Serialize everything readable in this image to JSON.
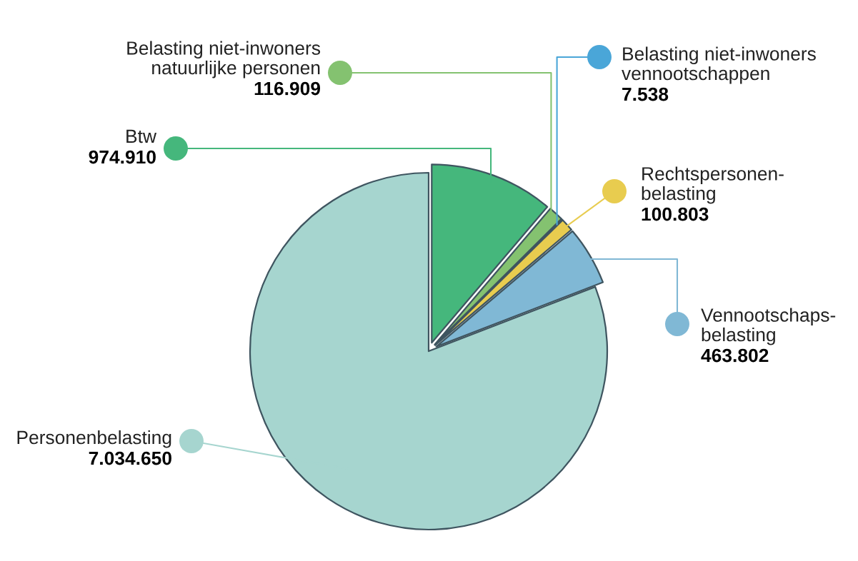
{
  "chart_data": {
    "type": "pie",
    "categories": [
      "Btw",
      "Belasting niet-inwoners natuurlijke personen",
      "Belasting niet-inwoners vennootschappen",
      "Rechtspersonen-belasting",
      "Vennootschaps-belasting",
      "Personenbelasting"
    ],
    "values": [
      974910,
      116909,
      7538,
      100803,
      463802,
      7034650
    ],
    "value_labels": [
      "974.910",
      "116.909",
      "7.538",
      "100.803",
      "463.802",
      "7.034.650"
    ],
    "colors": [
      "#45b77c",
      "#84c270",
      "#4aa6d8",
      "#e8cc4f",
      "#80b8d5",
      "#a6d5cf"
    ],
    "legend": "right"
  }
}
